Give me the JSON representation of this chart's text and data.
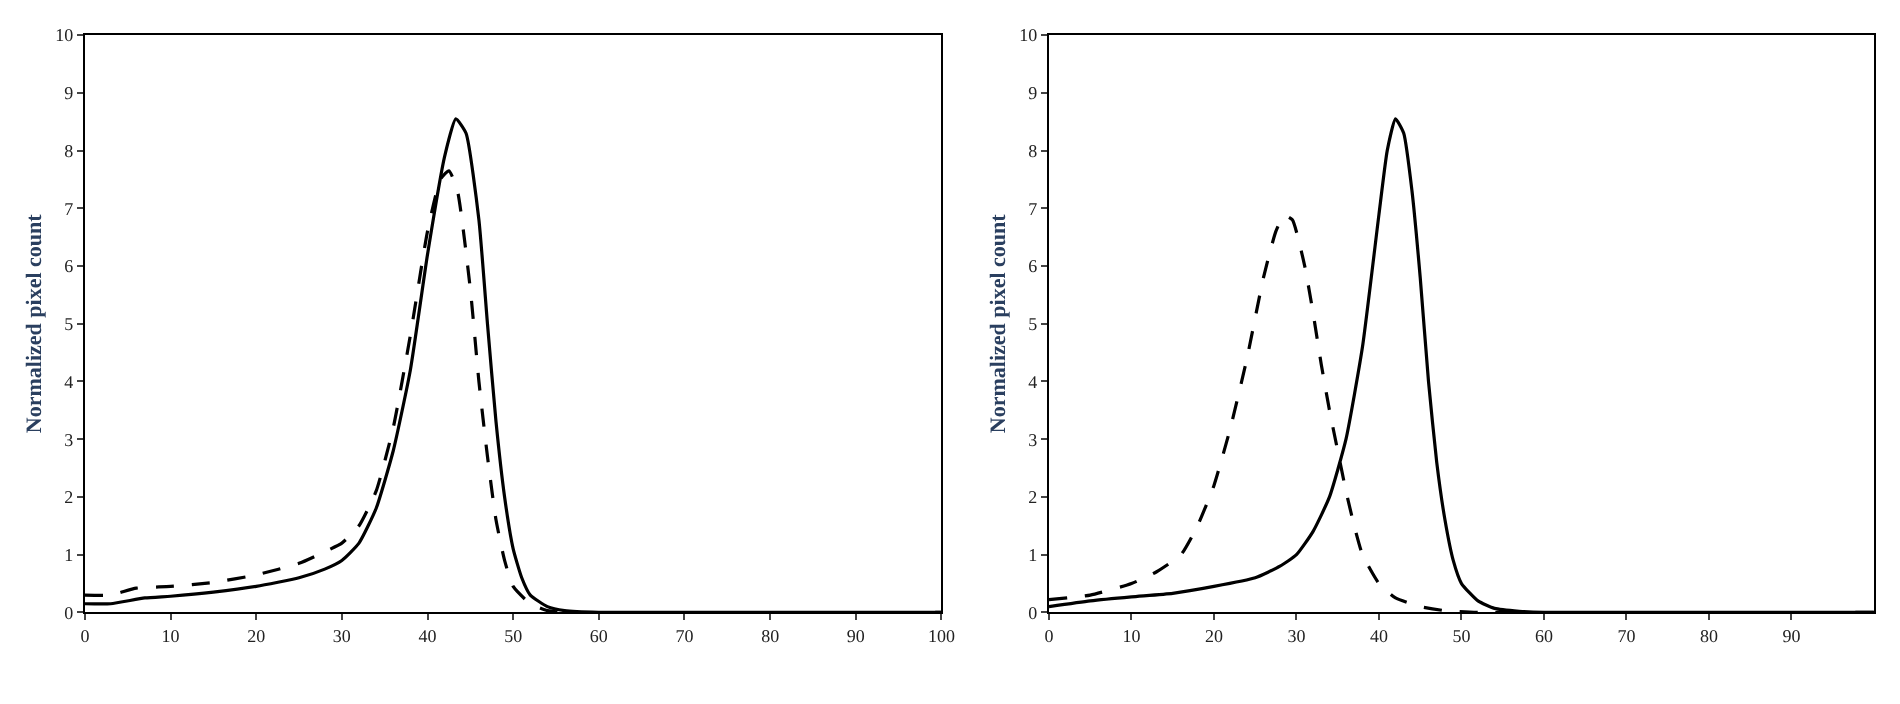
{
  "chart_data": [
    {
      "type": "line",
      "ylabel": "Normalized pixel count",
      "xlim": [
        0,
        100
      ],
      "xticks": [
        0,
        10,
        20,
        30,
        40,
        50,
        60,
        70,
        80,
        90,
        100
      ],
      "ylim": [
        0,
        10
      ],
      "yticks": [
        0,
        1,
        2,
        3,
        4,
        5,
        6,
        7,
        8,
        9,
        10
      ],
      "marker": "none",
      "series": [
        {
          "color": "#000000",
          "line_style": "solid",
          "x": [
            0,
            3,
            7,
            10,
            15,
            20,
            25,
            28,
            30,
            32,
            34,
            36,
            38,
            40,
            42,
            43.3,
            44.5,
            46,
            47,
            48,
            49,
            50,
            51,
            52,
            54,
            56,
            60,
            100
          ],
          "values": [
            0.15,
            0.15,
            0.25,
            0.28,
            0.35,
            0.45,
            0.6,
            0.75,
            0.9,
            1.2,
            1.8,
            2.8,
            4.2,
            6.2,
            7.9,
            8.55,
            8.3,
            6.8,
            5.0,
            3.3,
            2.0,
            1.1,
            0.6,
            0.3,
            0.1,
            0.03,
            0,
            0
          ]
        },
        {
          "color": "#000000",
          "line_style": "dashed",
          "x": [
            0,
            3,
            6,
            10,
            15,
            20,
            25,
            28,
            30,
            32,
            34,
            36,
            38,
            40,
            41.5,
            42.5,
            43.5,
            45,
            46,
            47,
            48,
            49,
            50,
            52,
            54,
            56,
            100
          ],
          "values": [
            0.3,
            0.3,
            0.42,
            0.45,
            0.52,
            0.65,
            0.85,
            1.05,
            1.2,
            1.5,
            2.1,
            3.2,
            4.8,
            6.6,
            7.5,
            7.65,
            7.3,
            5.6,
            4.0,
            2.7,
            1.6,
            0.9,
            0.45,
            0.15,
            0.03,
            0,
            0
          ]
        }
      ]
    },
    {
      "type": "line",
      "ylabel": "Normalized pixel count",
      "xlim": [
        0,
        100
      ],
      "xticks": [
        0,
        10,
        20,
        30,
        40,
        50,
        60,
        70,
        80,
        90
      ],
      "ylim": [
        0,
        10
      ],
      "yticks": [
        0,
        1,
        2,
        3,
        4,
        5,
        6,
        7,
        8,
        9,
        10
      ],
      "marker": "none",
      "series": [
        {
          "color": "#000000",
          "line_style": "solid",
          "x": [
            0,
            5,
            10,
            15,
            20,
            25,
            28,
            30,
            32,
            34,
            36,
            38,
            40,
            41,
            42,
            43,
            44,
            45,
            46,
            47,
            48,
            49,
            50,
            52,
            54,
            57,
            60,
            100
          ],
          "values": [
            0.1,
            0.2,
            0.27,
            0.33,
            0.45,
            0.6,
            0.8,
            1.0,
            1.4,
            2.0,
            3.0,
            4.6,
            6.9,
            8.0,
            8.55,
            8.3,
            7.3,
            5.8,
            4.0,
            2.6,
            1.6,
            0.9,
            0.5,
            0.2,
            0.07,
            0.02,
            0,
            0
          ]
        },
        {
          "color": "#000000",
          "line_style": "dashed",
          "x": [
            0,
            5,
            10,
            13,
            16,
            18,
            20,
            22,
            24,
            26,
            27.5,
            28.5,
            29.5,
            31,
            32,
            33,
            34,
            35,
            36,
            37,
            38,
            40,
            42,
            45,
            48,
            52,
            100
          ],
          "values": [
            0.22,
            0.3,
            0.5,
            0.7,
            1.0,
            1.5,
            2.2,
            3.2,
            4.4,
            5.8,
            6.6,
            6.88,
            6.8,
            6.0,
            5.2,
            4.3,
            3.5,
            2.8,
            2.1,
            1.5,
            1.0,
            0.5,
            0.25,
            0.1,
            0.03,
            0,
            0
          ]
        }
      ]
    }
  ]
}
